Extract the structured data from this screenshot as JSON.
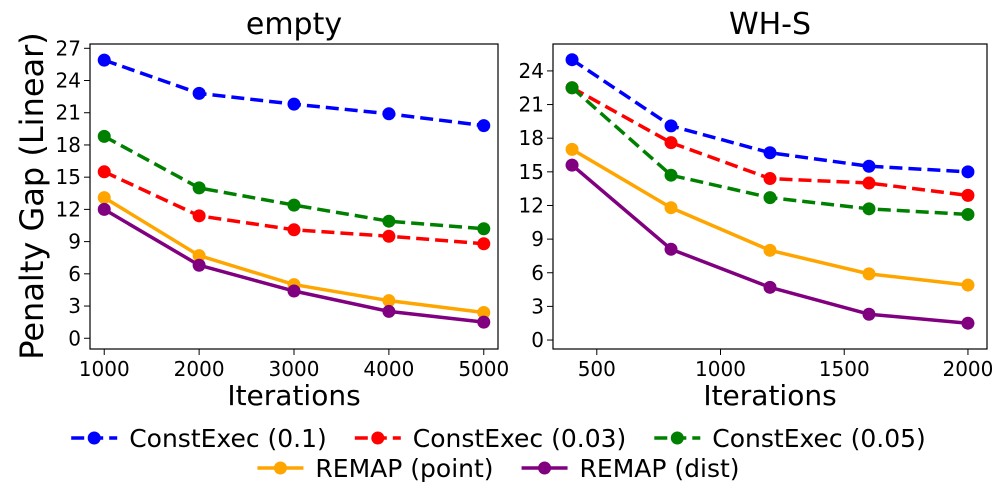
{
  "ylabel": "Penalty Gap (Linear)",
  "chart_data": [
    {
      "type": "line",
      "title": "empty",
      "xlabel": "Iterations",
      "ylabel": "Penalty Gap (Linear)",
      "x": [
        1000,
        2000,
        3000,
        4000,
        5000
      ],
      "xticks": [
        1000,
        2000,
        3000,
        4000,
        5000
      ],
      "xlim": [
        850,
        5150
      ],
      "yticks": [
        0,
        3,
        6,
        9,
        12,
        15,
        18,
        21,
        24,
        27
      ],
      "ylim": [
        -1.0,
        27.4
      ],
      "grid": false,
      "series": [
        {
          "name": "ConstExec (0.1)",
          "values": [
            25.9,
            22.8,
            21.8,
            20.9,
            19.8
          ]
        },
        {
          "name": "ConstExec (0.03)",
          "values": [
            15.5,
            11.4,
            10.1,
            9.5,
            8.8
          ]
        },
        {
          "name": "ConstExec (0.05)",
          "values": [
            18.8,
            14.0,
            12.4,
            10.9,
            10.2
          ]
        },
        {
          "name": "REMAP (point)",
          "values": [
            13.1,
            7.7,
            5.0,
            3.5,
            2.4
          ]
        },
        {
          "name": "REMAP (dist)",
          "values": [
            12.0,
            6.8,
            4.4,
            2.5,
            1.5
          ]
        }
      ]
    },
    {
      "type": "line",
      "title": "WH-S",
      "xlabel": "Iterations",
      "ylabel": "",
      "x": [
        400,
        800,
        1200,
        1600,
        2000
      ],
      "xticks": [
        500,
        1000,
        1500,
        2000
      ],
      "xlim": [
        323,
        2077
      ],
      "yticks": [
        0,
        3,
        6,
        9,
        12,
        15,
        18,
        21,
        24
      ],
      "ylim": [
        -0.8,
        26.4
      ],
      "grid": false,
      "series": [
        {
          "name": "ConstExec (0.1)",
          "values": [
            25.0,
            19.1,
            16.7,
            15.5,
            15.0
          ]
        },
        {
          "name": "ConstExec (0.03)",
          "values": [
            22.5,
            17.6,
            14.4,
            14.0,
            12.9
          ]
        },
        {
          "name": "ConstExec (0.05)",
          "values": [
            22.5,
            14.7,
            12.7,
            11.7,
            11.2
          ]
        },
        {
          "name": "REMAP (point)",
          "values": [
            17.0,
            11.8,
            8.0,
            5.9,
            4.9
          ]
        },
        {
          "name": "REMAP (dist)",
          "values": [
            15.6,
            8.1,
            4.7,
            2.3,
            1.5
          ]
        }
      ]
    }
  ],
  "legend": {
    "placement": "bottom",
    "items": [
      {
        "label": "ConstExec (0.1)",
        "color": "#0000ff",
        "style": "dashed"
      },
      {
        "label": "ConstExec (0.03)",
        "color": "#ff0000",
        "style": "dashed"
      },
      {
        "label": "ConstExec (0.05)",
        "color": "#008000",
        "style": "dashed"
      },
      {
        "label": "REMAP (point)",
        "color": "#ffa500",
        "style": "solid"
      },
      {
        "label": "REMAP (dist)",
        "color": "#800080",
        "style": "solid"
      }
    ]
  }
}
